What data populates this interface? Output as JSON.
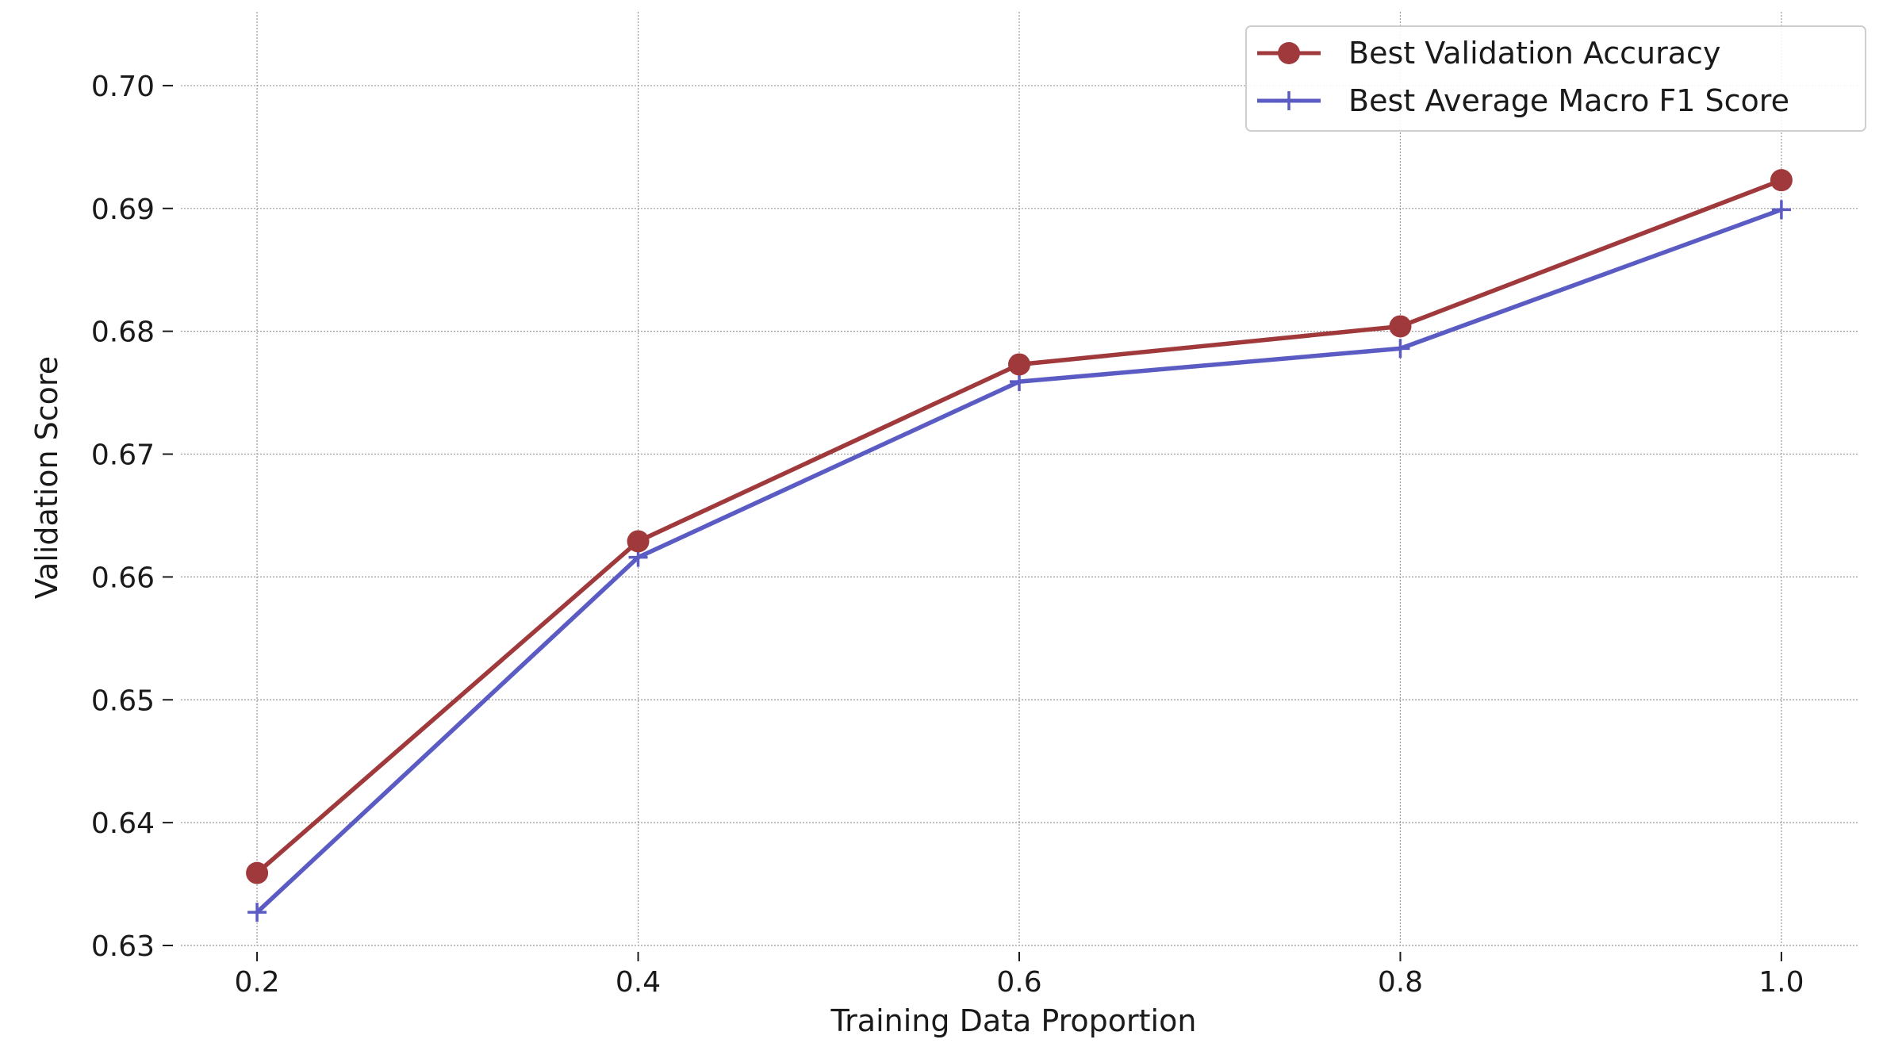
{
  "chart_data": {
    "type": "line",
    "title": "",
    "xlabel": "Training Data Proportion",
    "ylabel": "Validation Score",
    "x": [
      0.2,
      0.4,
      0.6,
      0.8,
      1.0
    ],
    "xticks": [
      "0.2",
      "0.4",
      "0.6",
      "0.8",
      "1.0"
    ],
    "yticks": [
      "0.63",
      "0.64",
      "0.65",
      "0.66",
      "0.67",
      "0.68",
      "0.69",
      "0.70"
    ],
    "xlim": [
      0.16,
      1.04
    ],
    "ylim": [
      0.63,
      0.706
    ],
    "grid": true,
    "legend_position": "top-right",
    "series": [
      {
        "name": "Best Validation Accuracy",
        "values": [
          0.6359,
          0.6629,
          0.6773,
          0.6804,
          0.6923
        ],
        "color": "#a0393c",
        "marker": "circle"
      },
      {
        "name": "Best Average Macro F1 Score",
        "values": [
          0.6327,
          0.6616,
          0.6759,
          0.6786,
          0.6899
        ],
        "color": "#5b5bc4",
        "marker": "plus"
      }
    ]
  }
}
